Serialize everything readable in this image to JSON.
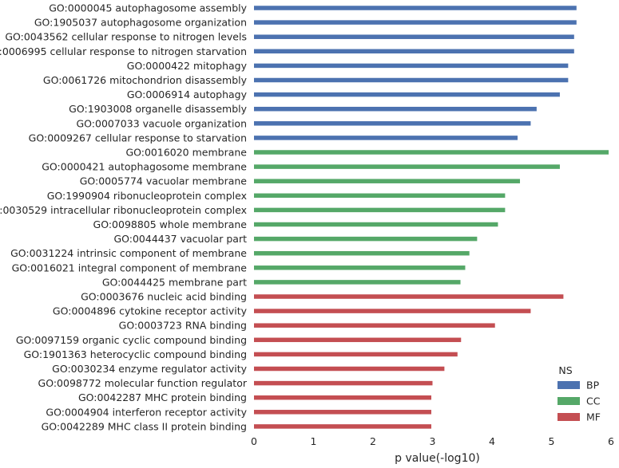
{
  "chart_data": {
    "type": "bar",
    "orientation": "horizontal",
    "xlabel": "p value(-log10)",
    "xlim": [
      0,
      6
    ],
    "xticks": [
      "0",
      "1",
      "2",
      "3",
      "4",
      "5",
      "6"
    ],
    "grid": false,
    "legend": {
      "title": "NS",
      "placement": "bottom-right",
      "entries": [
        {
          "label": "BP",
          "color": "#4c72b0"
        },
        {
          "label": "CC",
          "color": "#55a868"
        },
        {
          "label": "MF",
          "color": "#c44e52"
        }
      ]
    },
    "bars": [
      {
        "label": "GO:0000045 autophagosome assembly",
        "ns": "BP",
        "value": 5.42
      },
      {
        "label": "GO:1905037 autophagosome organization",
        "ns": "BP",
        "value": 5.42
      },
      {
        "label": "GO:0043562 cellular response to nitrogen levels",
        "ns": "BP",
        "value": 5.38
      },
      {
        "label": "GO:0006995 cellular response to nitrogen starvation",
        "ns": "BP",
        "value": 5.38
      },
      {
        "label": "GO:0000422 mitophagy",
        "ns": "BP",
        "value": 5.28
      },
      {
        "label": "GO:0061726 mitochondrion disassembly",
        "ns": "BP",
        "value": 5.28
      },
      {
        "label": "GO:0006914 autophagy",
        "ns": "BP",
        "value": 5.14
      },
      {
        "label": "GO:1903008 organelle disassembly",
        "ns": "BP",
        "value": 4.75
      },
      {
        "label": "GO:0007033 vacuole organization",
        "ns": "BP",
        "value": 4.65
      },
      {
        "label": "GO:0009267 cellular response to starvation",
        "ns": "BP",
        "value": 4.43
      },
      {
        "label": "GO:0016020 membrane",
        "ns": "CC",
        "value": 5.96
      },
      {
        "label": "GO:0000421 autophagosome membrane",
        "ns": "CC",
        "value": 5.14
      },
      {
        "label": "GO:0005774 vacuolar membrane",
        "ns": "CC",
        "value": 4.47
      },
      {
        "label": "GO:1990904 ribonucleoprotein complex",
        "ns": "CC",
        "value": 4.22
      },
      {
        "label": "GO:0030529 intracellular ribonucleoprotein complex",
        "ns": "CC",
        "value": 4.22
      },
      {
        "label": "GO:0098805 whole membrane",
        "ns": "CC",
        "value": 4.1
      },
      {
        "label": "GO:0044437 vacuolar part",
        "ns": "CC",
        "value": 3.75
      },
      {
        "label": "GO:0031224 intrinsic component of membrane",
        "ns": "CC",
        "value": 3.62
      },
      {
        "label": "GO:0016021 integral component of membrane",
        "ns": "CC",
        "value": 3.55
      },
      {
        "label": "GO:0044425 membrane part",
        "ns": "CC",
        "value": 3.47
      },
      {
        "label": "GO:0003676 nucleic acid binding",
        "ns": "MF",
        "value": 5.2
      },
      {
        "label": "GO:0004896 cytokine receptor activity",
        "ns": "MF",
        "value": 4.65
      },
      {
        "label": "GO:0003723 RNA binding",
        "ns": "MF",
        "value": 4.05
      },
      {
        "label": "GO:0097159 organic cyclic compound binding",
        "ns": "MF",
        "value": 3.48
      },
      {
        "label": "GO:1901363 heterocyclic compound binding",
        "ns": "MF",
        "value": 3.42
      },
      {
        "label": "GO:0030234 enzyme regulator activity",
        "ns": "MF",
        "value": 3.2
      },
      {
        "label": "GO:0098772 molecular function regulator",
        "ns": "MF",
        "value": 3.0
      },
      {
        "label": "GO:0042287 MHC protein binding",
        "ns": "MF",
        "value": 2.98
      },
      {
        "label": "GO:0004904 interferon receptor activity",
        "ns": "MF",
        "value": 2.98
      },
      {
        "label": "GO:0042289 MHC class II protein binding",
        "ns": "MF",
        "value": 2.98
      }
    ]
  }
}
